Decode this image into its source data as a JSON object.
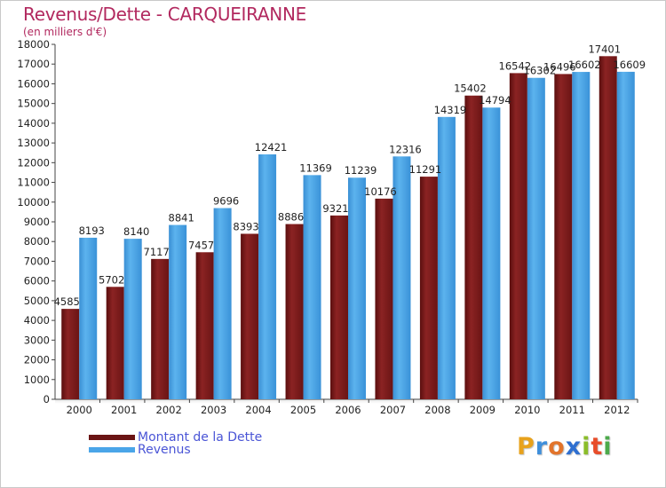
{
  "chart_data": {
    "type": "bar",
    "title": "Revenus/Dette - CARQUEIRANNE",
    "subtitle": "(en milliers d'€)",
    "categories": [
      "2000",
      "2001",
      "2002",
      "2003",
      "2004",
      "2005",
      "2006",
      "2007",
      "2008",
      "2009",
      "2010",
      "2011",
      "2012"
    ],
    "series": [
      {
        "name": "Montant de la Dette",
        "color": "#7a1a1a",
        "values": [
          4585,
          5702,
          7117,
          7457,
          8393,
          8886,
          9321,
          10176,
          11291,
          15402,
          16542,
          16496,
          17401
        ]
      },
      {
        "name": "Revenus",
        "color": "#3f9bde",
        "values": [
          8193,
          8140,
          8841,
          9696,
          12421,
          11369,
          11239,
          12316,
          14319,
          14794,
          16302,
          16602,
          16609
        ]
      }
    ],
    "ylim": [
      0,
      18000
    ],
    "ytick_step": 1000,
    "grid": false
  },
  "logo": {
    "letters": [
      "P",
      "r",
      "o",
      "x",
      "i",
      "t",
      "i"
    ],
    "colors": [
      "#e8a21c",
      "#3f8fdb",
      "#e2742b",
      "#2e6fd0",
      "#8bbd2a",
      "#e84d2a",
      "#4caa4b"
    ]
  }
}
